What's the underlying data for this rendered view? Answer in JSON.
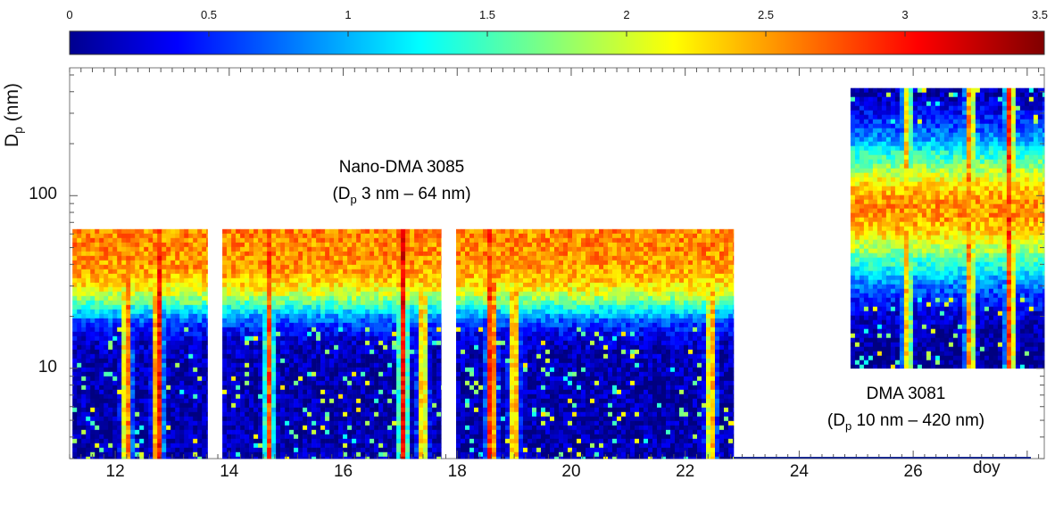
{
  "chart_data": {
    "type": "heatmap",
    "ylabel_main": "D",
    "ylabel_sub": "p",
    "ylabel_unit": " (nm)",
    "xlabel": "doy",
    "xlim": [
      11.2,
      28.3
    ],
    "ylim": [
      3,
      550
    ],
    "y_scale": "log",
    "colorbar": {
      "colormap": "jet",
      "range": [
        0,
        3.5
      ],
      "tick_labels": [
        "0",
        "0.5",
        "1",
        "1.5",
        "2",
        "2.5",
        "3",
        "3.5"
      ],
      "tick_values": [
        0,
        0.5,
        1,
        1.5,
        2,
        2.5,
        3,
        3.5
      ]
    },
    "x_ticks": {
      "values": [
        12,
        14,
        16,
        18,
        20,
        22,
        24,
        26
      ],
      "labels": [
        "12",
        "14",
        "16",
        "18",
        "20",
        "22",
        "24",
        "26"
      ]
    },
    "y_ticks": {
      "values": [
        10,
        100
      ],
      "labels": [
        "10",
        "100"
      ]
    },
    "panels": [
      {
        "instrument": "nano",
        "x_range": [
          11.25,
          13.62
        ],
        "d_range": [
          3,
          64
        ]
      },
      {
        "instrument": "nano",
        "x_range": [
          13.88,
          17.72
        ],
        "d_range": [
          3,
          64
        ]
      },
      {
        "instrument": "nano",
        "x_range": [
          17.98,
          22.85
        ],
        "d_range": [
          3,
          64
        ]
      },
      {
        "instrument": "dma",
        "x_range": [
          24.9,
          28.45
        ],
        "d_range": [
          10,
          420
        ]
      }
    ],
    "events": [
      {
        "doy": 12.2,
        "intensity": 2.9
      },
      {
        "doy": 12.75,
        "intensity": 3.3
      },
      {
        "doy": 14.7,
        "intensity": 2.8
      },
      {
        "doy": 17.05,
        "intensity": 3.1
      },
      {
        "doy": 17.4,
        "intensity": 2.7
      },
      {
        "doy": 18.6,
        "intensity": 3.3
      },
      {
        "doy": 19.0,
        "intensity": 2.8
      },
      {
        "doy": 22.45,
        "intensity": 2.7
      },
      {
        "doy": 25.9,
        "intensity": 2.6
      },
      {
        "doy": 27.0,
        "intensity": 2.9
      },
      {
        "doy": 27.7,
        "intensity": 3.2
      }
    ],
    "annotations": {
      "nano_line1": "Nano-DMA 3085",
      "nano_line2_pre": "(D",
      "nano_line2_sub": "p",
      "nano_line2_post": " 3 nm – 64 nm)",
      "dma_line1": "DMA 3081",
      "dma_line2_pre": "(D",
      "dma_line2_sub": "p",
      "dma_line2_post": " 10 nm – 420 nm)"
    }
  }
}
